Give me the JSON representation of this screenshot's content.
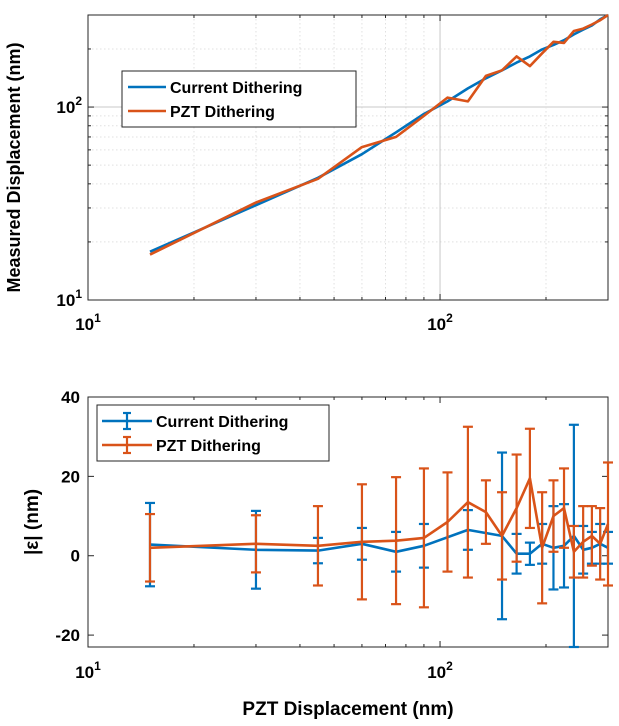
{
  "chart_data": [
    {
      "type": "line",
      "ylabel": "Measured Displacement (nm)",
      "xlabel": "",
      "xscale": "log",
      "yscale": "log",
      "xlim": [
        10,
        300
      ],
      "ylim": [
        10,
        300
      ],
      "grid": true,
      "legend_position": "top-left",
      "xticks": [
        "10",
        "10"
      ],
      "yticks": [
        "10",
        "10"
      ],
      "xticks_exp": [
        "1",
        "2"
      ],
      "yticks_exp": [
        "1",
        "2"
      ],
      "series": [
        {
          "name": "Current Dithering",
          "color": "#0072BD",
          "x": [
            15,
            30,
            45,
            60,
            75,
            90,
            105,
            120,
            135,
            150,
            165,
            180,
            195,
            210,
            225,
            240,
            255,
            270,
            285,
            300
          ],
          "y": [
            17.8,
            31,
            43,
            57,
            74,
            92,
            107,
            125,
            141,
            155,
            170,
            183,
            199,
            210,
            222,
            238,
            252,
            265,
            285,
            300
          ]
        },
        {
          "name": "PZT Dithering",
          "color": "#D95319",
          "x": [
            15,
            30,
            45,
            60,
            75,
            90,
            105,
            120,
            135,
            150,
            165,
            180,
            195,
            210,
            225,
            240,
            255,
            270,
            285,
            300
          ],
          "y": [
            17.2,
            32,
            42.5,
            62,
            70,
            90,
            112,
            107,
            145,
            155,
            183,
            163,
            190,
            218,
            215,
            248,
            255,
            268,
            282,
            300
          ]
        }
      ]
    },
    {
      "type": "line",
      "ylabel": "|ε| (nm)",
      "xlabel": "PZT Displacement (nm)",
      "xscale": "log",
      "xlim": [
        10,
        300
      ],
      "ylim": [
        -23,
        40
      ],
      "grid": false,
      "legend_position": "top-left",
      "xticks": [
        "10",
        "10"
      ],
      "xticks_exp": [
        "1",
        "2"
      ],
      "yticks": [
        "-20",
        "0",
        "20",
        "40"
      ],
      "series": [
        {
          "name": "Current Dithering",
          "color": "#0072BD",
          "x": [
            15,
            30,
            45,
            60,
            75,
            90,
            120,
            150,
            165,
            180,
            195,
            210,
            225,
            240,
            255,
            270,
            285,
            300
          ],
          "y": [
            2.8,
            1.5,
            1.3,
            3.0,
            1.0,
            2.5,
            6.5,
            5.0,
            0.5,
            0.5,
            3.0,
            2.0,
            2.5,
            5.0,
            1.5,
            2.0,
            3.0,
            2.0
          ],
          "err": [
            10.5,
            9.8,
            3.2,
            4.0,
            5.0,
            5.5,
            5.0,
            21,
            5.0,
            2.8,
            5.0,
            10.5,
            10.5,
            28,
            6.0,
            4.0,
            5.0,
            4.0
          ]
        },
        {
          "name": "PZT Dithering",
          "color": "#D95319",
          "x": [
            15,
            30,
            45,
            60,
            75,
            90,
            105,
            120,
            135,
            150,
            165,
            180,
            195,
            210,
            225,
            240,
            255,
            270,
            285,
            300
          ],
          "y": [
            2.0,
            3.0,
            2.5,
            3.5,
            3.8,
            4.5,
            8.5,
            13.5,
            11.0,
            5.0,
            12.0,
            19.5,
            2.0,
            10.0,
            12.0,
            1.0,
            3.5,
            5.0,
            3.0,
            8.0
          ],
          "err": [
            8.5,
            7.2,
            10.0,
            14.5,
            16.0,
            17.5,
            12.5,
            19.0,
            8.0,
            11.0,
            13.5,
            12.5,
            14.0,
            9.0,
            10.0,
            6.5,
            9.0,
            7.5,
            9.0,
            15.5
          ]
        }
      ]
    }
  ]
}
